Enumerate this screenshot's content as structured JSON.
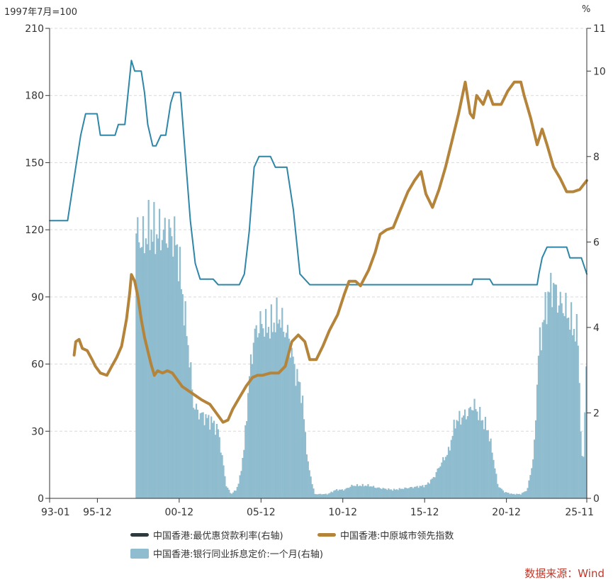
{
  "chart_data": {
    "type": "line+bar",
    "left_unit": "1997年7月=100",
    "right_unit": "%",
    "left_axis": {
      "ticks": [
        0,
        30,
        60,
        90,
        120,
        150,
        180,
        210
      ],
      "range": [
        0,
        210
      ]
    },
    "right_axis": {
      "ticks": [
        0,
        2,
        4,
        6,
        8,
        10,
        11
      ],
      "range": [
        0,
        11
      ]
    },
    "x_axis": {
      "range": [
        1993.0,
        2025.83
      ],
      "ticks": [
        "93-01",
        "95-12",
        "00-12",
        "05-12",
        "10-12",
        "15-12",
        "20-12",
        "25-11"
      ]
    },
    "grid": "horizontal dashed",
    "series": [
      {
        "name": "中国香港:最优惠贷款利率(右轴)",
        "type": "line",
        "axis": "right",
        "color": "#2e86a8",
        "points": [
          [
            1993.0,
            6.5
          ],
          [
            1994.1,
            6.5
          ],
          [
            1994.3,
            7.0
          ],
          [
            1994.6,
            7.75
          ],
          [
            1994.9,
            8.5
          ],
          [
            1995.2,
            9.0
          ],
          [
            1995.9,
            9.0
          ],
          [
            1996.1,
            8.5
          ],
          [
            1997.0,
            8.5
          ],
          [
            1997.2,
            8.75
          ],
          [
            1997.6,
            8.75
          ],
          [
            1997.8,
            9.5
          ],
          [
            1998.0,
            10.25
          ],
          [
            1998.2,
            10.0
          ],
          [
            1998.6,
            10.0
          ],
          [
            1998.8,
            9.5
          ],
          [
            1999.0,
            8.75
          ],
          [
            1999.3,
            8.25
          ],
          [
            1999.5,
            8.25
          ],
          [
            1999.8,
            8.5
          ],
          [
            2000.1,
            8.5
          ],
          [
            2000.4,
            9.25
          ],
          [
            2000.6,
            9.5
          ],
          [
            2001.0,
            9.5
          ],
          [
            2001.3,
            8.0
          ],
          [
            2001.6,
            6.5
          ],
          [
            2001.9,
            5.5
          ],
          [
            2002.2,
            5.13
          ],
          [
            2003.0,
            5.13
          ],
          [
            2003.3,
            5.0
          ],
          [
            2004.6,
            5.0
          ],
          [
            2004.9,
            5.25
          ],
          [
            2005.2,
            6.25
          ],
          [
            2005.5,
            7.75
          ],
          [
            2005.8,
            8.0
          ],
          [
            2006.5,
            8.0
          ],
          [
            2006.8,
            7.75
          ],
          [
            2007.5,
            7.75
          ],
          [
            2007.9,
            6.75
          ],
          [
            2008.3,
            5.25
          ],
          [
            2008.9,
            5.0
          ],
          [
            2018.8,
            5.0
          ],
          [
            2018.9,
            5.13
          ],
          [
            2019.9,
            5.13
          ],
          [
            2020.1,
            5.0
          ],
          [
            2022.8,
            5.0
          ],
          [
            2022.9,
            5.25
          ],
          [
            2023.1,
            5.63
          ],
          [
            2023.4,
            5.88
          ],
          [
            2024.6,
            5.88
          ],
          [
            2024.8,
            5.63
          ],
          [
            2025.5,
            5.63
          ],
          [
            2025.83,
            5.25
          ]
        ]
      },
      {
        "name": "中国香港:中原城市领先指数",
        "type": "line",
        "axis": "left",
        "color": "#b5843b",
        "points": [
          [
            1994.5,
            64
          ],
          [
            1994.6,
            70
          ],
          [
            1994.8,
            71
          ],
          [
            1995.0,
            67
          ],
          [
            1995.3,
            66
          ],
          [
            1995.6,
            62
          ],
          [
            1995.8,
            59
          ],
          [
            1996.1,
            56
          ],
          [
            1996.5,
            55
          ],
          [
            1996.8,
            59
          ],
          [
            1997.1,
            63
          ],
          [
            1997.4,
            68
          ],
          [
            1997.7,
            80
          ],
          [
            1997.9,
            92
          ],
          [
            1998.0,
            100
          ],
          [
            1998.2,
            97
          ],
          [
            1998.4,
            90
          ],
          [
            1998.6,
            80
          ],
          [
            1998.8,
            72
          ],
          [
            1999.0,
            66
          ],
          [
            1999.2,
            60
          ],
          [
            1999.4,
            55
          ],
          [
            1999.6,
            57
          ],
          [
            1999.9,
            56
          ],
          [
            2000.2,
            57
          ],
          [
            2000.5,
            56
          ],
          [
            2000.8,
            53
          ],
          [
            2001.1,
            50
          ],
          [
            2001.5,
            48
          ],
          [
            2001.9,
            46
          ],
          [
            2002.3,
            44
          ],
          [
            2002.8,
            42
          ],
          [
            2003.2,
            38
          ],
          [
            2003.6,
            34
          ],
          [
            2003.9,
            35
          ],
          [
            2004.2,
            40
          ],
          [
            2004.6,
            45
          ],
          [
            2005.0,
            50
          ],
          [
            2005.4,
            54
          ],
          [
            2005.7,
            55
          ],
          [
            2006.0,
            55
          ],
          [
            2006.5,
            56
          ],
          [
            2007.0,
            56
          ],
          [
            2007.4,
            59
          ],
          [
            2007.8,
            70
          ],
          [
            2008.2,
            73
          ],
          [
            2008.6,
            70
          ],
          [
            2008.9,
            62
          ],
          [
            2009.3,
            62
          ],
          [
            2009.7,
            68
          ],
          [
            2010.1,
            75
          ],
          [
            2010.6,
            82
          ],
          [
            2011.0,
            91
          ],
          [
            2011.3,
            97
          ],
          [
            2011.7,
            97
          ],
          [
            2012.0,
            95
          ],
          [
            2012.5,
            102
          ],
          [
            2012.9,
            110
          ],
          [
            2013.2,
            118
          ],
          [
            2013.6,
            120
          ],
          [
            2014.0,
            121
          ],
          [
            2014.5,
            130
          ],
          [
            2014.9,
            137
          ],
          [
            2015.3,
            142
          ],
          [
            2015.7,
            146
          ],
          [
            2016.0,
            136
          ],
          [
            2016.4,
            130
          ],
          [
            2016.8,
            138
          ],
          [
            2017.2,
            148
          ],
          [
            2017.6,
            160
          ],
          [
            2018.0,
            172
          ],
          [
            2018.4,
            186
          ],
          [
            2018.7,
            172
          ],
          [
            2018.9,
            170
          ],
          [
            2019.1,
            180
          ],
          [
            2019.5,
            176
          ],
          [
            2019.8,
            182
          ],
          [
            2020.1,
            176
          ],
          [
            2020.6,
            176
          ],
          [
            2021.0,
            182
          ],
          [
            2021.4,
            186
          ],
          [
            2021.8,
            186
          ],
          [
            2022.0,
            180
          ],
          [
            2022.4,
            170
          ],
          [
            2022.8,
            158
          ],
          [
            2023.1,
            165
          ],
          [
            2023.4,
            158
          ],
          [
            2023.8,
            148
          ],
          [
            2024.2,
            143
          ],
          [
            2024.6,
            137
          ],
          [
            2025.0,
            137
          ],
          [
            2025.4,
            138
          ],
          [
            2025.83,
            142
          ]
        ]
      },
      {
        "name": "中国香港:银行同业拆息定价:一个月(右轴)",
        "type": "bar",
        "axis": "right",
        "color": "#8fbccf",
        "points": [
          [
            1998.3,
            6.2
          ],
          [
            1998.7,
            6.0
          ],
          [
            1999.1,
            6.3
          ],
          [
            1999.5,
            6.2
          ],
          [
            2000.0,
            6.2
          ],
          [
            2000.5,
            6.2
          ],
          [
            2000.8,
            5.9
          ],
          [
            2001.2,
            4.5
          ],
          [
            2001.5,
            3.5
          ],
          [
            2001.8,
            2.2
          ],
          [
            2002.1,
            2.0
          ],
          [
            2002.5,
            1.9
          ],
          [
            2002.9,
            1.8
          ],
          [
            2003.3,
            1.6
          ],
          [
            2003.5,
            1.1
          ],
          [
            2003.8,
            0.3
          ],
          [
            2004.1,
            0.1
          ],
          [
            2004.4,
            0.2
          ],
          [
            2004.6,
            0.4
          ],
          [
            2004.9,
            1.2
          ],
          [
            2005.2,
            2.8
          ],
          [
            2005.5,
            3.8
          ],
          [
            2005.9,
            4.1
          ],
          [
            2006.3,
            4.0
          ],
          [
            2006.7,
            4.1
          ],
          [
            2007.0,
            4.3
          ],
          [
            2007.3,
            4.0
          ],
          [
            2007.6,
            3.8
          ],
          [
            2008.0,
            3.0
          ],
          [
            2008.4,
            2.5
          ],
          [
            2008.8,
            0.8
          ],
          [
            2009.2,
            0.1
          ],
          [
            2009.6,
            0.1
          ],
          [
            2010.0,
            0.1
          ],
          [
            2010.5,
            0.2
          ],
          [
            2011.0,
            0.2
          ],
          [
            2011.5,
            0.3
          ],
          [
            2012.0,
            0.3
          ],
          [
            2012.5,
            0.3
          ],
          [
            2013.0,
            0.25
          ],
          [
            2014.0,
            0.2
          ],
          [
            2015.0,
            0.25
          ],
          [
            2016.0,
            0.3
          ],
          [
            2016.5,
            0.5
          ],
          [
            2016.9,
            0.8
          ],
          [
            2017.4,
            1.1
          ],
          [
            2017.8,
            1.8
          ],
          [
            2018.2,
            1.9
          ],
          [
            2018.6,
            2.0
          ],
          [
            2018.9,
            2.2
          ],
          [
            2019.2,
            2.0
          ],
          [
            2019.5,
            1.8
          ],
          [
            2019.8,
            1.6
          ],
          [
            2020.1,
            1.0
          ],
          [
            2020.4,
            0.3
          ],
          [
            2020.8,
            0.15
          ],
          [
            2021.3,
            0.1
          ],
          [
            2021.8,
            0.1
          ],
          [
            2022.2,
            0.2
          ],
          [
            2022.6,
            1.0
          ],
          [
            2022.9,
            3.5
          ],
          [
            2023.2,
            4.2
          ],
          [
            2023.5,
            4.8
          ],
          [
            2023.8,
            5.0
          ],
          [
            2024.1,
            4.6
          ],
          [
            2024.4,
            4.5
          ],
          [
            2024.7,
            4.3
          ],
          [
            2025.0,
            4.0
          ],
          [
            2025.3,
            3.8
          ],
          [
            2025.5,
            1.2
          ],
          [
            2025.6,
            0.6
          ],
          [
            2025.83,
            3.5
          ]
        ]
      }
    ]
  },
  "legend": {
    "prime": "中国香港:最优惠贷款利率(右轴)",
    "ccl": "中国香港:中原城市领先指数",
    "hibor": "中国香港:银行同业拆息定价:一个月(右轴)"
  },
  "source": "数据来源：Wind"
}
